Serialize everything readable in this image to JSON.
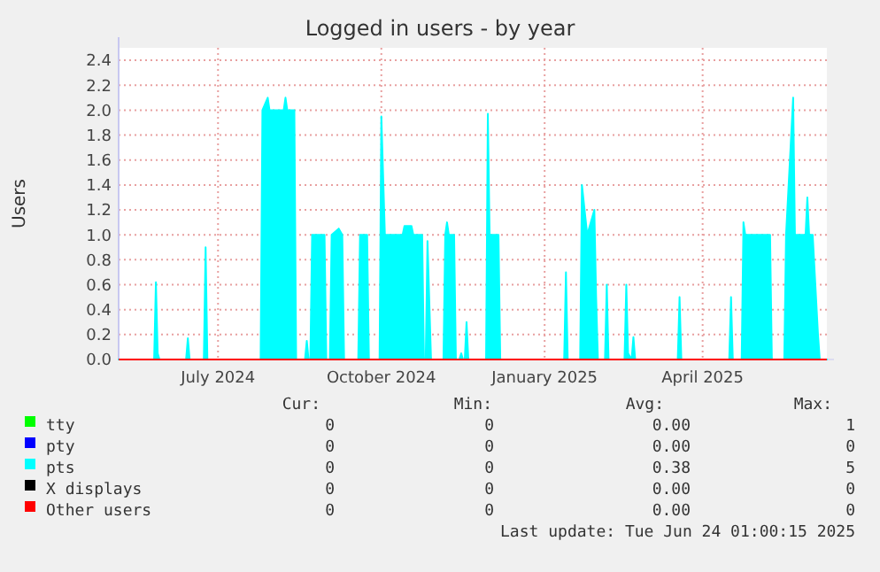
{
  "chart_data": {
    "type": "area",
    "title": "Logged in users - by year",
    "ylabel": "Users",
    "xlim": [
      "2024-05-21",
      "2025-06-24"
    ],
    "xticks": [
      {
        "value": "2024-07-16",
        "label": "July 2024"
      },
      {
        "value": "2024-10-16",
        "label": "October 2024"
      },
      {
        "value": "2025-01-16",
        "label": "January 2025"
      },
      {
        "value": "2025-04-15",
        "label": "April 2025"
      }
    ],
    "ylim": [
      0,
      2.5
    ],
    "yticks": [
      {
        "value": 0,
        "label": "0.0"
      },
      {
        "value": 0.2,
        "label": "0.2"
      },
      {
        "value": 0.4,
        "label": "0.4"
      },
      {
        "value": 0.6,
        "label": "0.6"
      },
      {
        "value": 0.8,
        "label": "0.8"
      },
      {
        "value": 1.0,
        "label": "1.0"
      },
      {
        "value": 1.2,
        "label": "1.2"
      },
      {
        "value": 1.4,
        "label": "1.4"
      },
      {
        "value": 1.6,
        "label": "1.6"
      },
      {
        "value": 1.8,
        "label": "1.8"
      },
      {
        "value": 2.0,
        "label": "2.0"
      },
      {
        "value": 2.2,
        "label": "2.2"
      },
      {
        "value": 2.4,
        "label": "2.4"
      }
    ],
    "grid": true,
    "legend": "bottom",
    "series": [
      {
        "name": "tty",
        "type": "line",
        "color": "#00ff00"
      },
      {
        "name": "pty",
        "type": "line",
        "color": "#0000ff"
      },
      {
        "name": "pts",
        "color": "#00ffff",
        "x": [
          "2024-05-21",
          "2024-06-10",
          "2024-06-11",
          "2024-06-12",
          "2024-06-13",
          "2024-06-28",
          "2024-06-29",
          "2024-06-30",
          "2024-07-08",
          "2024-07-09",
          "2024-07-10",
          "2024-08-09",
          "2024-08-10",
          "2024-08-13",
          "2024-08-14",
          "2024-08-22",
          "2024-08-23",
          "2024-08-24",
          "2024-08-28",
          "2024-08-29",
          "2024-09-03",
          "2024-09-04",
          "2024-09-05",
          "2024-09-06",
          "2024-09-07",
          "2024-09-14",
          "2024-09-15",
          "2024-09-17",
          "2024-09-18",
          "2024-09-22",
          "2024-09-24",
          "2024-09-25",
          "2024-10-03",
          "2024-10-04",
          "2024-10-08",
          "2024-10-09",
          "2024-10-15",
          "2024-10-16",
          "2024-10-18",
          "2024-10-28",
          "2024-10-29",
          "2024-11-02",
          "2024-11-03",
          "2024-11-08",
          "2024-11-09",
          "2024-11-10",
          "2024-11-11",
          "2024-11-13",
          "2024-11-20",
          "2024-11-21",
          "2024-11-22",
          "2024-11-23",
          "2024-11-26",
          "2024-11-27",
          "2024-11-29",
          "2024-11-30",
          "2024-12-01",
          "2024-12-02",
          "2024-12-03",
          "2024-12-04",
          "2024-12-14",
          "2024-12-15",
          "2024-12-16",
          "2024-12-21",
          "2024-12-22",
          "2025-01-27",
          "2025-01-28",
          "2025-01-29",
          "2025-02-05",
          "2025-02-06",
          "2025-02-09",
          "2025-02-13",
          "2025-02-14",
          "2025-02-15",
          "2025-02-19",
          "2025-02-20",
          "2025-02-21",
          "2025-03-02",
          "2025-03-03",
          "2025-03-04",
          "2025-03-06",
          "2025-03-07",
          "2025-03-08",
          "2025-04-01",
          "2025-04-02",
          "2025-04-03",
          "2025-04-30",
          "2025-05-01",
          "2025-05-02",
          "2025-05-07",
          "2025-05-08",
          "2025-05-09",
          "2025-05-23",
          "2025-05-24",
          "2025-05-31",
          "2025-06-01",
          "2025-06-05",
          "2025-06-06",
          "2025-06-12",
          "2025-06-13",
          "2025-06-14",
          "2025-06-16",
          "2025-06-19",
          "2025-06-20",
          "2025-06-24"
        ],
        "values": [
          0,
          0,
          0.62,
          0.05,
          0,
          0,
          0.17,
          0,
          0,
          0.9,
          0,
          0,
          2.0,
          2.1,
          2.0,
          2.0,
          2.1,
          2.0,
          2.0,
          0,
          0,
          0.15,
          0,
          0,
          1.0,
          1.0,
          0,
          0,
          1.0,
          1.05,
          1.0,
          0,
          0,
          1.0,
          1.0,
          0,
          0,
          1.95,
          1.0,
          1.0,
          1.07,
          1.07,
          1.0,
          1.0,
          0,
          0,
          0.95,
          0,
          0,
          1.0,
          1.1,
          1.0,
          1.0,
          0,
          0,
          0.05,
          0,
          0,
          0.3,
          0,
          0,
          1.97,
          1.0,
          1.0,
          0,
          0,
          0.7,
          0,
          0,
          1.4,
          1.0,
          1.2,
          0.5,
          0,
          0,
          0.6,
          0,
          0,
          0.6,
          0.05,
          0,
          0.18,
          0,
          0,
          0.5,
          0,
          0,
          0.5,
          0,
          0,
          1.1,
          1.0,
          1.0,
          0,
          0,
          1.0,
          2.1,
          1.0,
          1.0,
          1.3,
          1.0,
          1.0,
          0.2,
          0,
          0
        ]
      },
      {
        "name": "X displays",
        "type": "line",
        "color": "#000000"
      },
      {
        "name": "Other users",
        "type": "line",
        "color": "#ff0000",
        "x": [
          "2024-05-21",
          "2025-06-24"
        ],
        "values": [
          0,
          0
        ]
      }
    ],
    "annotations": [
      "Cur:",
      "Min:",
      "Avg:",
      "Max:",
      "0",
      "0",
      "0.00",
      "1",
      "0",
      "0",
      "0.00",
      "0",
      "0",
      "0",
      "0.38",
      "5",
      "0",
      "0",
      "0.00",
      "0",
      "0",
      "0",
      "0.00",
      "0",
      "Last update: Tue Jun 24 01:00:15 2025"
    ]
  }
}
